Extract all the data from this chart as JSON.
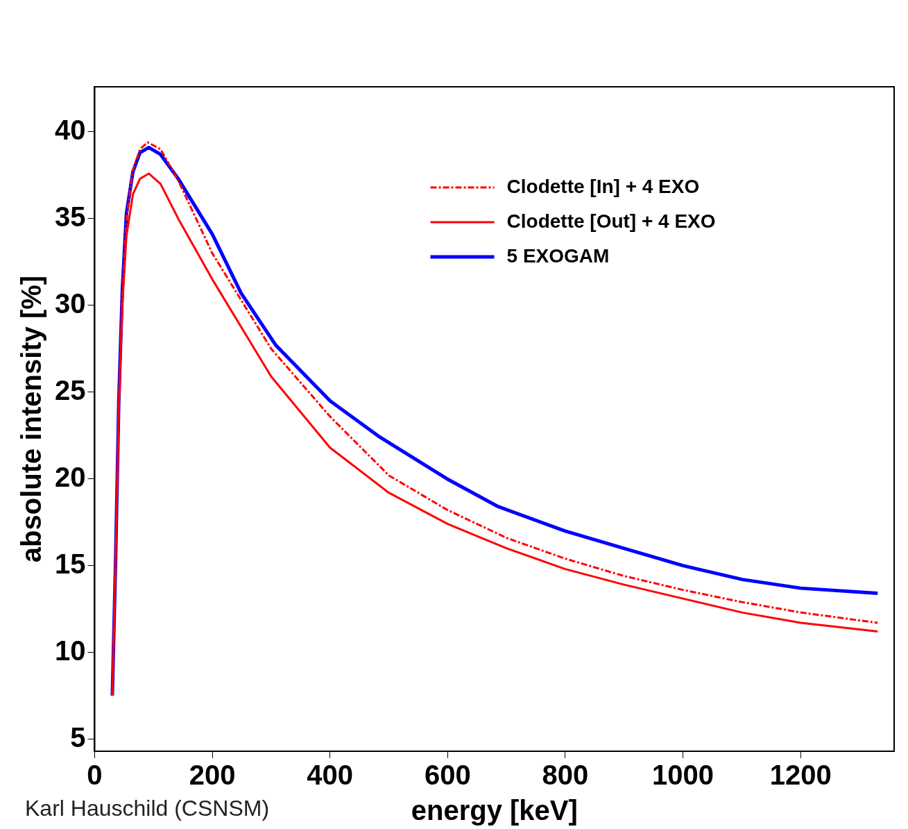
{
  "chart_data": {
    "type": "line",
    "xlabel": "energy [keV]",
    "ylabel": "absolute intensity [%]",
    "xlim": [
      0,
      1359
    ],
    "ylim": [
      4.3,
      42.6
    ],
    "xticks": [
      0,
      200,
      400,
      600,
      800,
      1000,
      1200
    ],
    "yticks": [
      5,
      10,
      15,
      20,
      25,
      30,
      35,
      40
    ],
    "grid": false,
    "legend": "top right",
    "marker": "none",
    "annotations": [
      "Karl Hauschild (CSNSM)"
    ],
    "series": [
      {
        "name": "Clodette [In] + 4 EXO",
        "color": "#ff0000",
        "line_style": "dashed",
        "x": [
          30,
          35.5,
          41,
          47,
          54,
          65,
          77,
          90,
          112,
          142,
          200,
          300,
          400,
          500,
          600,
          700,
          800,
          900,
          1000,
          1100,
          1200,
          1331
        ],
        "values": [
          7.5,
          15.2,
          24.3,
          30.6,
          35.0,
          37.8,
          39.0,
          39.4,
          39.0,
          37.2,
          33.0,
          27.5,
          23.6,
          20.2,
          18.2,
          16.6,
          15.4,
          14.4,
          13.6,
          12.9,
          12.3,
          11.7
        ]
      },
      {
        "name": "Clodette [Out] + 4 EXO",
        "color": "#ff0000",
        "line_style": "solid",
        "x": [
          30,
          35.5,
          41,
          47,
          54,
          65,
          77,
          92,
          112,
          142,
          200,
          300,
          400,
          500,
          600,
          700,
          800,
          900,
          1000,
          1100,
          1200,
          1331
        ],
        "values": [
          7.5,
          15.2,
          24.0,
          30.0,
          34.0,
          36.4,
          37.3,
          37.6,
          37.0,
          35.0,
          31.5,
          25.9,
          21.8,
          19.2,
          17.4,
          16.0,
          14.8,
          13.9,
          13.1,
          12.3,
          11.7,
          11.2
        ]
      },
      {
        "name": "5 EXOGAM",
        "color": "#0000ff",
        "line_style": "solid",
        "x": [
          30,
          35.5,
          41,
          47,
          54,
          65,
          77,
          92,
          112,
          142,
          200,
          249,
          308,
          400,
          485,
          599,
          686,
          799,
          899,
          1000,
          1101,
          1200,
          1331
        ],
        "values": [
          7.5,
          15.2,
          24.5,
          30.9,
          35.3,
          37.7,
          38.8,
          39.1,
          38.7,
          37.3,
          34.1,
          30.7,
          27.7,
          24.5,
          22.4,
          20.0,
          18.4,
          17.0,
          16.0,
          15.0,
          14.2,
          13.7,
          13.4
        ]
      }
    ]
  }
}
